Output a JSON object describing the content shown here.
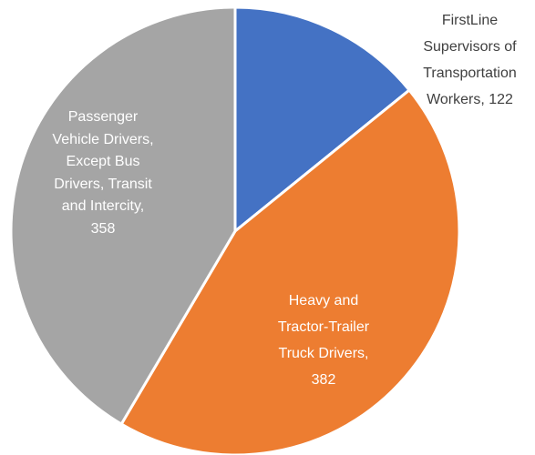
{
  "chart_data": {
    "type": "pie",
    "categories": [
      "FirstLine Supervisors of Transportation Workers,",
      "Heavy and Tractor-Trailer Truck Drivers,",
      "Passenger Vehicle Drivers, Except Bus Drivers, Transit and Intercity,"
    ],
    "values": [
      122,
      382,
      358
    ],
    "colors": [
      "#4472c4",
      "#ed7d31",
      "#a5a5a5"
    ]
  }
}
